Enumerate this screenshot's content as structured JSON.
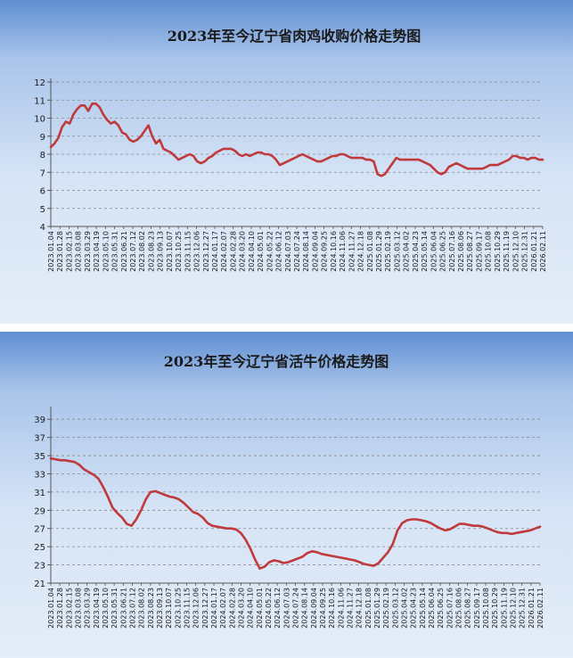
{
  "chart_data": [
    {
      "type": "line",
      "title": "2023年至今辽宁省肉鸡收购价格走势图",
      "xlabel": "",
      "ylabel": "",
      "ylim": [
        4,
        12
      ],
      "yticks": [
        "4",
        "5",
        "6",
        "7",
        "8",
        "9",
        "10",
        "11",
        "12"
      ],
      "grid": true,
      "line_color": "#c0393b",
      "x_tick_labels": [
        "2023.01.04",
        "2023.01.28",
        "2023.02.15",
        "2023.03.08",
        "2023.03.29",
        "2023.04.19",
        "2023.05.10",
        "2023.05.31",
        "2023.06.21",
        "2023.07.12",
        "2023.08.02",
        "2023.08.23",
        "2023.09.13",
        "2023.10.07",
        "2023.10.25",
        "2023.11.15",
        "2023.12.06",
        "2023.12.27",
        "2024.01.17",
        "2024.02.07",
        "2024.02.28",
        "2024.03.20",
        "2024.04.10",
        "2024.05.01",
        "2024.05.22",
        "2024.06.12",
        "2024.07.03",
        "2024.07.24",
        "2024.08.14",
        "2024.09.04",
        "2024.09.25",
        "2024.10.16",
        "2024.11.06",
        "2024.11.27",
        "2024.12.18",
        "2025.01.08",
        "2025.01.29",
        "2025.02.19",
        "2025.03.12",
        "2025.04.02",
        "2025.04.23",
        "2025.05.14",
        "2025.06.04",
        "2025.06.25",
        "2025.07.16",
        "2025.08.06",
        "2025.08.27",
        "2025.09.17",
        "2025.10.08",
        "2025.10.29",
        "2025.11.19",
        "2025.12.10",
        "2025.12.31",
        "2026.01.21",
        "2026.02.11"
      ],
      "series": [
        {
          "values": [
            8.4,
            8.6,
            8.9,
            9.5,
            9.8,
            9.7,
            10.2,
            10.5,
            10.7,
            10.7,
            10.4,
            10.8,
            10.8,
            10.6,
            10.2,
            9.9,
            9.7,
            9.8,
            9.6,
            9.2,
            9.1,
            8.8,
            8.7,
            8.8,
            9.0,
            9.3,
            9.6,
            9.0,
            8.6,
            8.8,
            8.3,
            8.2,
            8.1,
            7.9,
            7.7,
            7.8,
            7.9,
            8.0,
            7.9,
            7.6,
            7.5,
            7.6,
            7.8,
            7.9,
            8.1,
            8.2,
            8.3,
            8.3,
            8.3,
            8.2,
            8.0,
            7.9,
            8.0,
            7.9,
            8.0,
            8.1,
            8.1,
            8.0,
            8.0,
            7.9,
            7.7,
            7.4,
            7.5,
            7.6,
            7.7,
            7.8,
            7.9,
            8.0,
            7.9,
            7.8,
            7.7,
            7.6,
            7.6,
            7.7,
            7.8,
            7.9,
            7.9,
            8.0,
            8.0,
            7.9,
            7.8,
            7.8,
            7.8,
            7.8,
            7.7,
            7.7,
            7.6,
            6.9,
            6.8,
            6.9,
            7.2,
            7.5,
            7.8,
            7.7,
            7.7,
            7.7,
            7.7,
            7.7,
            7.7,
            7.6,
            7.5,
            7.4,
            7.2,
            7.0,
            6.9,
            7.0,
            7.3,
            7.4,
            7.5,
            7.4,
            7.3,
            7.2,
            7.2,
            7.2,
            7.2,
            7.2,
            7.3,
            7.4,
            7.4,
            7.4,
            7.5,
            7.6,
            7.7,
            7.9,
            7.9,
            7.8,
            7.8,
            7.7,
            7.8,
            7.8,
            7.7,
            7.7
          ]
        }
      ]
    },
    {
      "type": "line",
      "title": "2023年至今辽宁省活牛价格走势图",
      "xlabel": "",
      "ylabel": "",
      "ylim": [
        21,
        40
      ],
      "yticks": [
        "21",
        "23",
        "25",
        "27",
        "29",
        "31",
        "33",
        "35",
        "37",
        "39"
      ],
      "grid": true,
      "line_color": "#c0393b",
      "x_tick_labels": [
        "2023.01.04",
        "2023.01.28",
        "2023.02.15",
        "2023.03.08",
        "2023.03.29",
        "2023.04.19",
        "2023.05.10",
        "2023.05.31",
        "2023.06.21",
        "2023.07.12",
        "2023.08.02",
        "2023.08.23",
        "2023.09.13",
        "2023.10.07",
        "2023.10.25",
        "2023.11.15",
        "2023.12.06",
        "2023.12.27",
        "2024.01.17",
        "2024.02.07",
        "2024.02.28",
        "2024.03.20",
        "2024.04.10",
        "2024.05.01",
        "2024.05.22",
        "2024.06.12",
        "2024.07.03",
        "2024.07.24",
        "2024.08.14",
        "2024.09.04",
        "2024.09.25",
        "2024.10.16",
        "2024.11.06",
        "2024.11.27",
        "2024.12.18",
        "2025.01.08",
        "2025.01.29",
        "2025.02.19",
        "2025.03.12",
        "2025.04.02",
        "2025.04.23",
        "2025.05.14",
        "2025.06.04",
        "2025.06.25",
        "2025.07.16",
        "2025.08.06",
        "2025.08.27",
        "2025.09.17",
        "2025.10.08",
        "2025.10.29",
        "2025.11.19",
        "2025.12.10",
        "2025.12.31",
        "2026.01.21",
        "2026.02.11"
      ],
      "series": [
        {
          "values": [
            34.7,
            34.6,
            34.5,
            34.5,
            34.4,
            34.3,
            34.0,
            33.5,
            33.2,
            32.9,
            32.5,
            31.6,
            30.5,
            29.3,
            28.7,
            28.2,
            27.5,
            27.3,
            28.0,
            29.0,
            30.2,
            31.0,
            31.1,
            30.9,
            30.7,
            30.5,
            30.4,
            30.2,
            29.8,
            29.3,
            28.8,
            28.6,
            28.2,
            27.6,
            27.3,
            27.2,
            27.1,
            27.0,
            27.0,
            26.9,
            26.5,
            25.8,
            24.8,
            23.6,
            22.6,
            22.8,
            23.3,
            23.5,
            23.4,
            23.2,
            23.3,
            23.5,
            23.7,
            23.9,
            24.3,
            24.5,
            24.4,
            24.2,
            24.1,
            24.0,
            23.9,
            23.8,
            23.7,
            23.6,
            23.5,
            23.3,
            23.1,
            23.0,
            22.9,
            23.2,
            23.8,
            24.4,
            25.3,
            26.8,
            27.6,
            27.9,
            28.0,
            28.0,
            27.9,
            27.8,
            27.6,
            27.3,
            27.0,
            26.8,
            26.9,
            27.2,
            27.5,
            27.5,
            27.4,
            27.3,
            27.3,
            27.2,
            27.0,
            26.8,
            26.6,
            26.5,
            26.5,
            26.4,
            26.5,
            26.6,
            26.7,
            26.8,
            27.0,
            27.2
          ]
        }
      ]
    }
  ]
}
